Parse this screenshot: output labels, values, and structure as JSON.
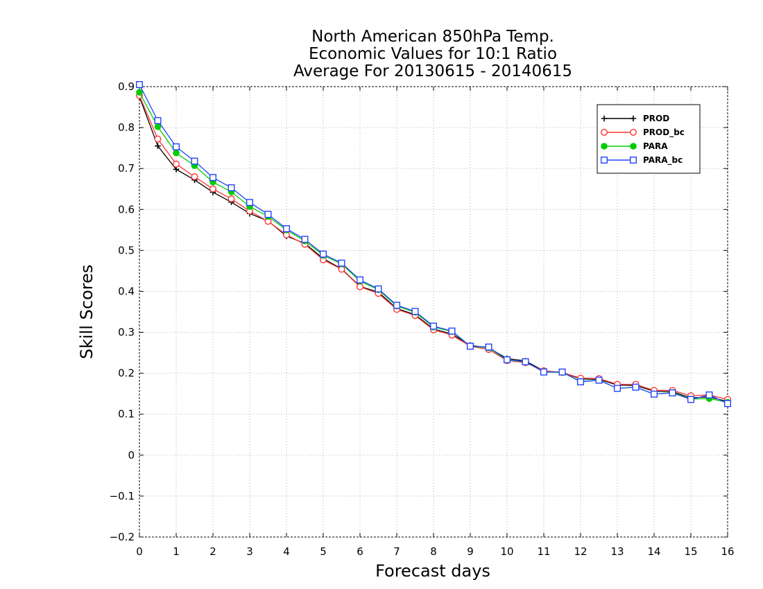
{
  "chart_data": {
    "type": "line",
    "title": [
      "North American 850hPa Temp.",
      "Economic Values for 10:1 Ratio",
      "Average For 20130615 - 20140615"
    ],
    "xlabel": "Forecast days",
    "ylabel": "Skill Scores",
    "xlim": [
      0,
      16
    ],
    "ylim": [
      -0.2,
      0.9
    ],
    "xticks": [
      "0",
      "1",
      "2",
      "3",
      "4",
      "5",
      "6",
      "7",
      "8",
      "9",
      "10",
      "11",
      "12",
      "13",
      "14",
      "15",
      "16"
    ],
    "yticks": [
      "−0.2",
      "−0.1",
      "0",
      "0.1",
      "0.2",
      "0.3",
      "0.4",
      "0.5",
      "0.6",
      "0.7",
      "0.8",
      "0.9"
    ],
    "grid": true,
    "legend_position": "top-right",
    "x": [
      0,
      0.5,
      1,
      1.5,
      2,
      2.5,
      3,
      3.5,
      4,
      4.5,
      5,
      5.5,
      6,
      6.5,
      7,
      7.5,
      8,
      8.5,
      9,
      9.5,
      10,
      10.5,
      11,
      11.5,
      12,
      12.5,
      13,
      13.5,
      14,
      14.5,
      15,
      15.5,
      16
    ],
    "series": [
      {
        "name": "PROD",
        "color": "#000000",
        "marker": "plus",
        "values": [
          0.875,
          0.755,
          0.698,
          0.672,
          0.642,
          0.618,
          0.59,
          0.572,
          0.535,
          0.517,
          0.48,
          0.455,
          0.412,
          0.398,
          0.358,
          0.343,
          0.308,
          0.296,
          0.268,
          0.262,
          0.236,
          0.23,
          0.206,
          0.202,
          0.186,
          0.185,
          0.171,
          0.17,
          0.156,
          0.155,
          0.14,
          0.142,
          0.131
        ]
      },
      {
        "name": "PROD_bc",
        "color": "#ff3333",
        "marker": "circle-open",
        "values": [
          0.878,
          0.772,
          0.711,
          0.68,
          0.65,
          0.626,
          0.596,
          0.571,
          0.538,
          0.515,
          0.477,
          0.454,
          0.411,
          0.395,
          0.356,
          0.341,
          0.306,
          0.293,
          0.266,
          0.258,
          0.231,
          0.226,
          0.206,
          0.202,
          0.188,
          0.187,
          0.173,
          0.173,
          0.158,
          0.158,
          0.145,
          0.147,
          0.136
        ]
      },
      {
        "name": "PARA",
        "color": "#00cc00",
        "marker": "circle-filled",
        "values": [
          0.886,
          0.802,
          0.738,
          0.707,
          0.667,
          0.643,
          0.607,
          0.583,
          0.55,
          0.523,
          0.488,
          0.467,
          0.425,
          0.404,
          0.364,
          0.349,
          0.313,
          0.302,
          0.266,
          0.262,
          0.232,
          0.228,
          0.203,
          0.202,
          0.18,
          0.183,
          0.163,
          0.166,
          0.149,
          0.153,
          0.137,
          0.138,
          0.129
        ]
      },
      {
        "name": "PARA_bc",
        "color": "#2244ff",
        "marker": "square-open",
        "values": [
          0.905,
          0.817,
          0.753,
          0.718,
          0.678,
          0.653,
          0.617,
          0.588,
          0.553,
          0.527,
          0.491,
          0.469,
          0.428,
          0.406,
          0.366,
          0.351,
          0.315,
          0.303,
          0.266,
          0.264,
          0.233,
          0.228,
          0.203,
          0.203,
          0.179,
          0.183,
          0.163,
          0.166,
          0.149,
          0.152,
          0.136,
          0.147,
          0.126
        ]
      }
    ]
  }
}
